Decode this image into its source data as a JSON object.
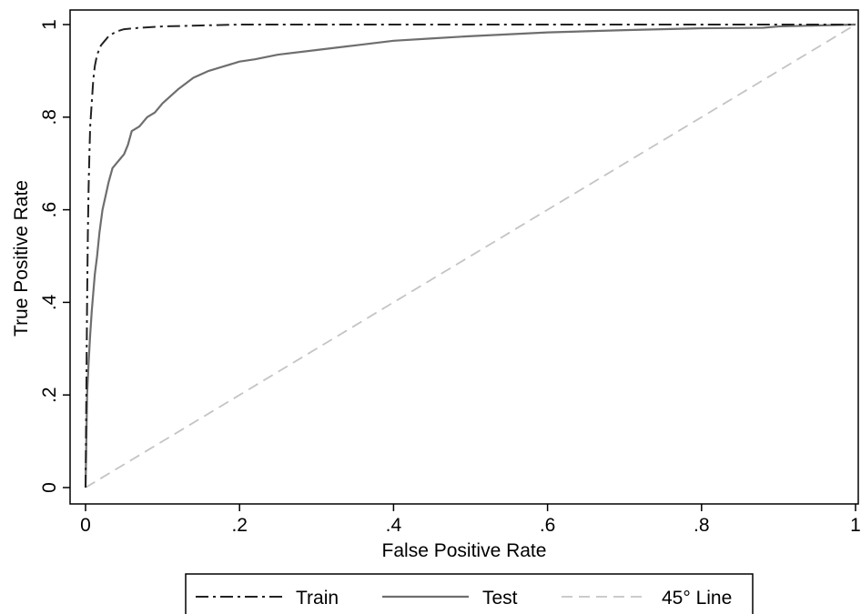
{
  "chart_data": {
    "type": "line",
    "xlabel": "False Positive Rate",
    "ylabel": "True Positive Rate",
    "xlim": [
      0,
      1
    ],
    "ylim": [
      0,
      1
    ],
    "x_ticks": [
      {
        "value": 0,
        "label": "0"
      },
      {
        "value": 0.2,
        "label": ".2"
      },
      {
        "value": 0.4,
        "label": ".4"
      },
      {
        "value": 0.6,
        "label": ".6"
      },
      {
        "value": 0.8,
        "label": ".8"
      },
      {
        "value": 1,
        "label": "1"
      }
    ],
    "y_ticks": [
      {
        "value": 0,
        "label": "0"
      },
      {
        "value": 0.2,
        "label": ".2"
      },
      {
        "value": 0.4,
        "label": ".4"
      },
      {
        "value": 0.6,
        "label": ".6"
      },
      {
        "value": 0.8,
        "label": ".8"
      },
      {
        "value": 1,
        "label": "1"
      }
    ],
    "grid": false,
    "legend_position": "bottom",
    "series": [
      {
        "name": "Train",
        "color": "#222222",
        "dash": "dash-dot",
        "points": [
          [
            0,
            0
          ],
          [
            0.001,
            0.2
          ],
          [
            0.002,
            0.4
          ],
          [
            0.003,
            0.55
          ],
          [
            0.004,
            0.65
          ],
          [
            0.005,
            0.72
          ],
          [
            0.006,
            0.78
          ],
          [
            0.008,
            0.83
          ],
          [
            0.01,
            0.88
          ],
          [
            0.012,
            0.91
          ],
          [
            0.015,
            0.935
          ],
          [
            0.02,
            0.955
          ],
          [
            0.025,
            0.965
          ],
          [
            0.03,
            0.975
          ],
          [
            0.04,
            0.985
          ],
          [
            0.05,
            0.99
          ],
          [
            0.07,
            0.993
          ],
          [
            0.1,
            0.996
          ],
          [
            0.15,
            0.998
          ],
          [
            0.2,
            1
          ],
          [
            1,
            1
          ]
        ]
      },
      {
        "name": "Test",
        "color": "#6e6e6e",
        "dash": "solid",
        "points": [
          [
            0,
            0
          ],
          [
            0.002,
            0.2
          ],
          [
            0.004,
            0.27
          ],
          [
            0.006,
            0.33
          ],
          [
            0.008,
            0.38
          ],
          [
            0.01,
            0.42
          ],
          [
            0.012,
            0.46
          ],
          [
            0.015,
            0.5
          ],
          [
            0.018,
            0.55
          ],
          [
            0.022,
            0.6
          ],
          [
            0.026,
            0.63
          ],
          [
            0.03,
            0.66
          ],
          [
            0.035,
            0.69
          ],
          [
            0.04,
            0.7
          ],
          [
            0.045,
            0.71
          ],
          [
            0.05,
            0.72
          ],
          [
            0.055,
            0.74
          ],
          [
            0.06,
            0.77
          ],
          [
            0.065,
            0.775
          ],
          [
            0.07,
            0.78
          ],
          [
            0.08,
            0.8
          ],
          [
            0.09,
            0.81
          ],
          [
            0.1,
            0.83
          ],
          [
            0.12,
            0.86
          ],
          [
            0.14,
            0.885
          ],
          [
            0.16,
            0.9
          ],
          [
            0.18,
            0.91
          ],
          [
            0.2,
            0.92
          ],
          [
            0.22,
            0.925
          ],
          [
            0.25,
            0.935
          ],
          [
            0.3,
            0.945
          ],
          [
            0.35,
            0.955
          ],
          [
            0.4,
            0.965
          ],
          [
            0.45,
            0.97
          ],
          [
            0.5,
            0.975
          ],
          [
            0.6,
            0.983
          ],
          [
            0.7,
            0.988
          ],
          [
            0.8,
            0.992
          ],
          [
            0.88,
            0.993
          ],
          [
            0.9,
            0.996
          ],
          [
            0.95,
            0.998
          ],
          [
            1,
            1
          ]
        ]
      },
      {
        "name": "45° Line",
        "color": "#c4c4c4",
        "dash": "dashed",
        "points": [
          [
            0,
            0
          ],
          [
            1,
            1
          ]
        ]
      }
    ]
  }
}
